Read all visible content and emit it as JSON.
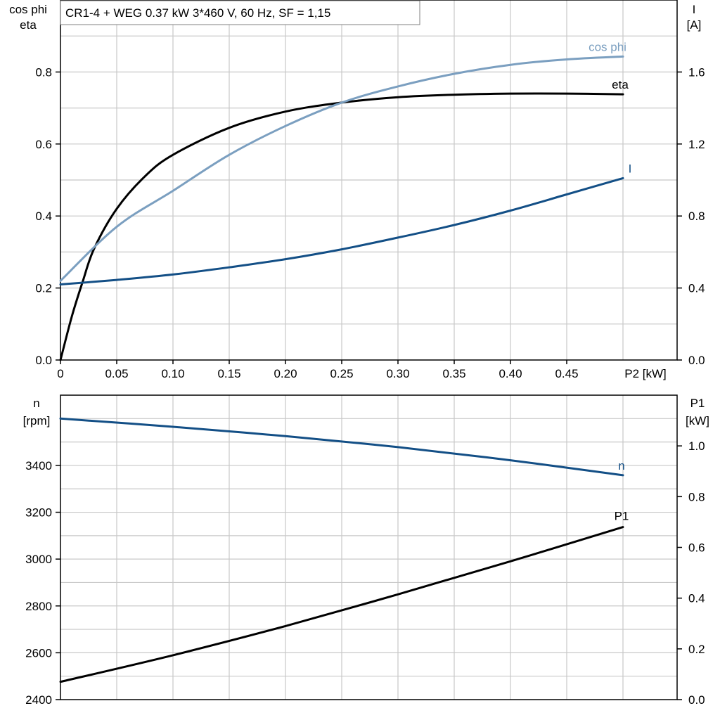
{
  "chart_title": "CR1-4 + WEG   0.37 kW   3*460 V, 60 Hz, SF = 1,15",
  "colors": {
    "eta": "#000000",
    "cos_phi": "#7b9fc0",
    "I": "#134f86",
    "n": "#134f86",
    "P1": "#000000",
    "grid": "#c8c8c8"
  },
  "chart_data": [
    {
      "type": "line",
      "xlabel": "P2 [kW]",
      "x_ticks": [
        "0",
        "0.05",
        "0.10",
        "0.15",
        "0.20",
        "0.25",
        "0.30",
        "0.35",
        "0.40",
        "0.45"
      ],
      "xlim": [
        0,
        0.55
      ],
      "ylabel_left": [
        "cos phi",
        "eta"
      ],
      "ylim_left": [
        0,
        1.0
      ],
      "y_ticks_left": [
        "0.0",
        "0.2",
        "0.4",
        "0.6",
        "0.8"
      ],
      "ylabel_right": [
        "I",
        "[A]"
      ],
      "ylim_right": [
        0,
        2.0
      ],
      "y_ticks_right": [
        "0.0",
        "0.4",
        "0.8",
        "1.2",
        "1.6"
      ],
      "grid": true,
      "series": [
        {
          "name": "eta",
          "axis": "left",
          "x": [
            0,
            0.01,
            0.02,
            0.03,
            0.05,
            0.075,
            0.1,
            0.15,
            0.2,
            0.25,
            0.3,
            0.35,
            0.4,
            0.45,
            0.5
          ],
          "y": [
            0.0,
            0.12,
            0.22,
            0.31,
            0.42,
            0.51,
            0.57,
            0.645,
            0.69,
            0.715,
            0.73,
            0.737,
            0.74,
            0.74,
            0.738
          ]
        },
        {
          "name": "cos phi",
          "axis": "left",
          "x": [
            0,
            0.05,
            0.1,
            0.15,
            0.2,
            0.25,
            0.3,
            0.35,
            0.4,
            0.45,
            0.5
          ],
          "y": [
            0.22,
            0.37,
            0.47,
            0.57,
            0.65,
            0.715,
            0.76,
            0.795,
            0.82,
            0.835,
            0.843
          ]
        },
        {
          "name": "I",
          "axis": "right",
          "x": [
            0,
            0.05,
            0.1,
            0.15,
            0.2,
            0.25,
            0.3,
            0.35,
            0.4,
            0.45,
            0.5
          ],
          "y": [
            0.42,
            0.445,
            0.475,
            0.515,
            0.56,
            0.615,
            0.68,
            0.75,
            0.83,
            0.92,
            1.01
          ]
        }
      ]
    },
    {
      "type": "line",
      "xlabel": "",
      "xlim": [
        0,
        0.55
      ],
      "ylabel_left": [
        "n",
        "[rpm]"
      ],
      "ylim_left": [
        2400,
        3700
      ],
      "y_ticks_left": [
        "2400",
        "2600",
        "2800",
        "3000",
        "3200",
        "3400"
      ],
      "ylabel_right": [
        "P1",
        "[kW]"
      ],
      "ylim_right": [
        0,
        1.2
      ],
      "y_ticks_right": [
        "0.0",
        "0.2",
        "0.4",
        "0.6",
        "0.8",
        "1.0"
      ],
      "grid": true,
      "series": [
        {
          "name": "n",
          "axis": "left",
          "x": [
            0,
            0.1,
            0.2,
            0.3,
            0.4,
            0.5
          ],
          "y": [
            3600,
            3565,
            3525,
            3478,
            3422,
            3358
          ]
        },
        {
          "name": "P1",
          "axis": "right",
          "x": [
            0,
            0.1,
            0.2,
            0.3,
            0.4,
            0.5
          ],
          "y": [
            0.07,
            0.175,
            0.29,
            0.415,
            0.545,
            0.68
          ]
        }
      ]
    }
  ]
}
